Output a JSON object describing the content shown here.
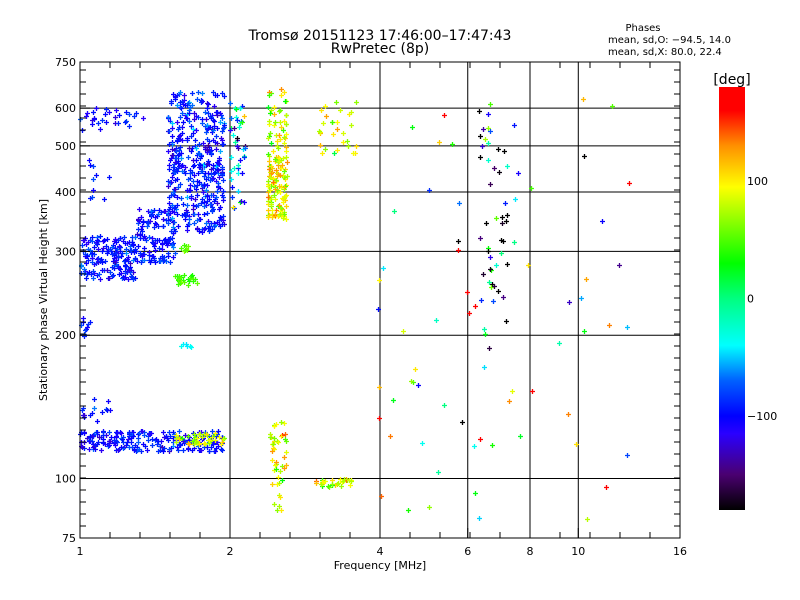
{
  "chart_data": {
    "type": "scatter",
    "title": "Tromsø 20151123 17:46:00–17:47:43",
    "subtitle": "RwPretec (8p)",
    "stats": {
      "heading": "Phases",
      "line_o": "mean, sd,O: −94.5, 14.0",
      "line_x": "mean, sd,X:  80.0, 22.4"
    },
    "xlabel": "Frequency [MHz]",
    "ylabel": "Stationary phase Virtual Height [km]",
    "x_scale": "log",
    "y_scale": "log",
    "xlim": [
      1,
      16
    ],
    "ylim": [
      75,
      750
    ],
    "x_ticks": [
      1,
      2,
      4,
      6,
      8,
      10,
      16
    ],
    "x_tick_labels": [
      "1",
      "2",
      "4",
      "6",
      "8",
      "10",
      "16"
    ],
    "x_grid": [
      2,
      4,
      6,
      8,
      10
    ],
    "y_ticks": [
      75,
      100,
      200,
      300,
      400,
      500,
      600,
      750
    ],
    "y_tick_labels": [
      "75",
      "100",
      "200",
      "300",
      "400",
      "500",
      "600",
      "750"
    ],
    "y_grid": [
      100,
      200,
      300,
      400,
      500,
      600
    ],
    "colorbar": {
      "label": "[deg]",
      "range": [
        -180,
        180
      ],
      "ticks": [
        100,
        0,
        -100
      ],
      "tick_labels": [
        "100",
        "0",
        "−100"
      ],
      "stops": [
        [
          -180,
          "#000000"
        ],
        [
          -150,
          "#4a0070"
        ],
        [
          -115,
          "#2a00ff"
        ],
        [
          -100,
          "#0000ff"
        ],
        [
          -70,
          "#0060ff"
        ],
        [
          -40,
          "#00ffff"
        ],
        [
          0,
          "#00ff80"
        ],
        [
          30,
          "#00ff00"
        ],
        [
          95,
          "#ffff00"
        ],
        [
          130,
          "#ff9000"
        ],
        [
          160,
          "#ff0000"
        ],
        [
          180,
          "#ff0000"
        ]
      ]
    },
    "clusters": [
      {
        "f": [
          1.0,
          1.3
        ],
        "h": [
          262,
          325
        ],
        "phase": -95,
        "sd": 15,
        "n": 170
      },
      {
        "f": [
          1.3,
          1.55
        ],
        "h": [
          285,
          370
        ],
        "phase": -95,
        "sd": 15,
        "n": 130
      },
      {
        "f": [
          1.5,
          1.95
        ],
        "h": [
          330,
          460
        ],
        "phase": -95,
        "sd": 18,
        "n": 210
      },
      {
        "f": [
          1.5,
          1.95
        ],
        "h": [
          450,
          650
        ],
        "phase": -95,
        "sd": 20,
        "n": 200
      },
      {
        "f": [
          1.0,
          1.35
        ],
        "h": [
          540,
          600
        ],
        "phase": -95,
        "sd": 15,
        "n": 30
      },
      {
        "f": [
          1.0,
          1.15
        ],
        "h": [
          380,
          470
        ],
        "phase": -90,
        "sd": 15,
        "n": 10
      },
      {
        "f": [
          2.38,
          2.6
        ],
        "h": [
          350,
          480
        ],
        "phase": 90,
        "sd": 25,
        "n": 120
      },
      {
        "f": [
          2.38,
          2.6
        ],
        "h": [
          480,
          660
        ],
        "phase": 80,
        "sd": 30,
        "n": 45
      },
      {
        "f": [
          1.0,
          1.95
        ],
        "h": [
          114,
          126
        ],
        "phase": -95,
        "sd": 15,
        "n": 220
      },
      {
        "f": [
          1.55,
          1.95
        ],
        "h": [
          118,
          125
        ],
        "phase": 80,
        "sd": 20,
        "n": 45
      },
      {
        "f": [
          1.0,
          1.15
        ],
        "h": [
          132,
          150
        ],
        "phase": -95,
        "sd": 15,
        "n": 15
      },
      {
        "f": [
          1.55,
          1.72
        ],
        "h": [
          255,
          268
        ],
        "phase": 45,
        "sd": 10,
        "n": 25
      },
      {
        "f": [
          1.55,
          1.75
        ],
        "h": [
          300,
          310
        ],
        "phase": 50,
        "sd": 15,
        "n": 8
      },
      {
        "f": [
          1.58,
          1.7
        ],
        "h": [
          188,
          193
        ],
        "phase": -40,
        "sd": 5,
        "n": 6
      },
      {
        "f": [
          2.4,
          2.6
        ],
        "h": [
          85,
          132
        ],
        "phase": 80,
        "sd": 30,
        "n": 45
      },
      {
        "f": [
          2.95,
          3.5
        ],
        "h": [
          96,
          100
        ],
        "phase": 90,
        "sd": 25,
        "n": 30
      },
      {
        "f": [
          2.0,
          2.15
        ],
        "h": [
          370,
          620
        ],
        "phase": -60,
        "sd": 70,
        "n": 45
      },
      {
        "f": [
          3.0,
          3.6
        ],
        "h": [
          480,
          620
        ],
        "phase": 80,
        "sd": 25,
        "n": 30
      },
      {
        "f": [
          6.3,
          7.2
        ],
        "h": [
          200,
          620
        ],
        "phase": -90,
        "sd": 90,
        "n": 45
      },
      {
        "f": [
          3.9,
          13.0
        ],
        "h": [
          80,
          640
        ],
        "phase": 0,
        "sd": 130,
        "n": 70
      },
      {
        "f": [
          1.0,
          1.05
        ],
        "h": [
          198,
          222
        ],
        "phase": -95,
        "sd": 10,
        "n": 10
      }
    ]
  }
}
